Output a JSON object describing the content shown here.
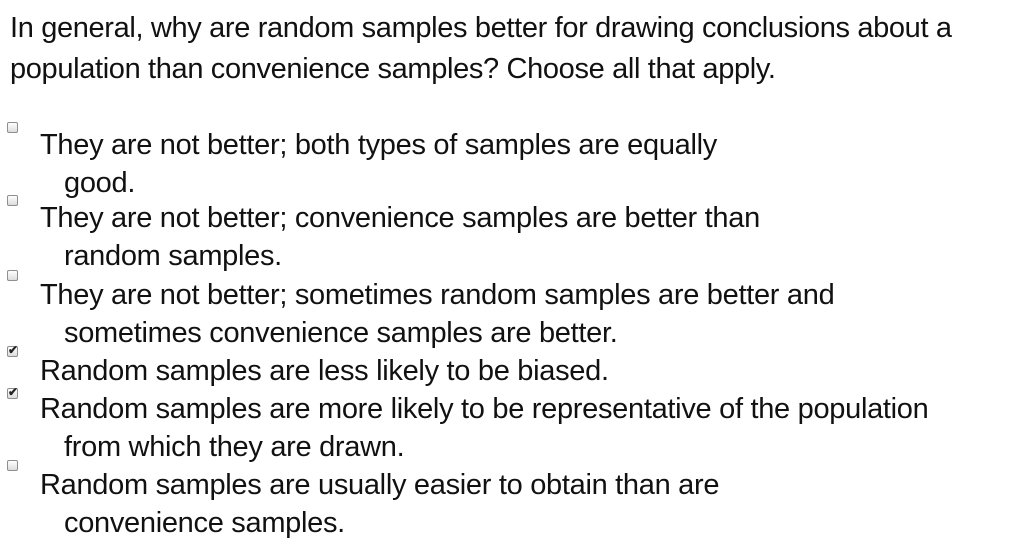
{
  "question": {
    "text": "In general, why are random samples better for drawing conclusions about a population than convenience samples? Choose all that apply."
  },
  "options": [
    {
      "label": "They are not better; both types of samples are equally good.",
      "checked": false
    },
    {
      "label": "They are not better; convenience samples are better than random samples.",
      "checked": false
    },
    {
      "label": "They are not better; sometimes random samples are better and sometimes convenience samples are better.",
      "checked": false
    },
    {
      "label": "Random samples are less likely to be biased.",
      "checked": true
    },
    {
      "label": "Random samples are more likely to be representative of the population from which they are drawn.",
      "checked": true
    },
    {
      "label": "Random samples are usually easier to obtain than are convenience samples.",
      "checked": false
    }
  ]
}
